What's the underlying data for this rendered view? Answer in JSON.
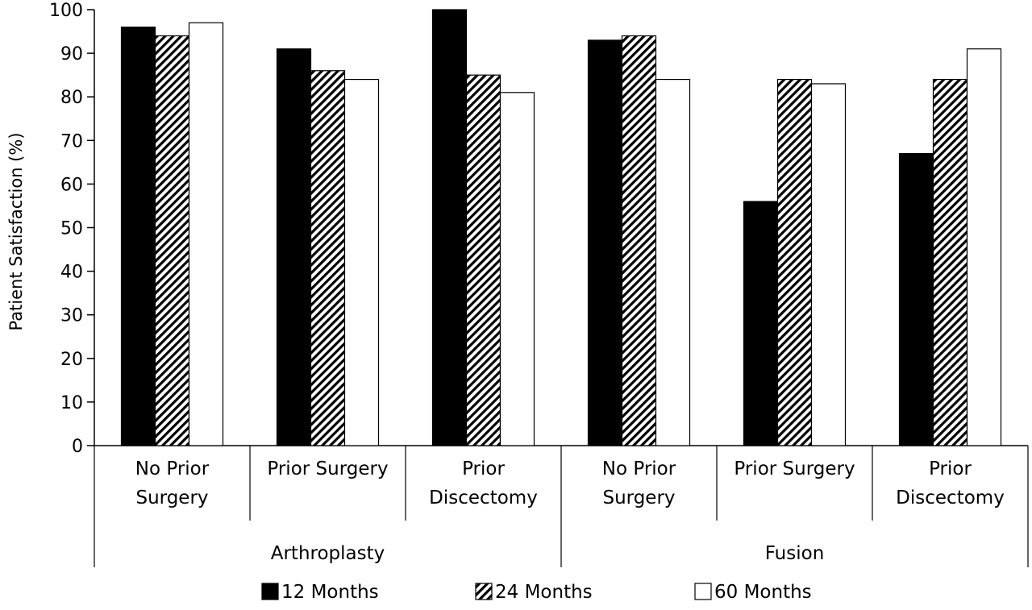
{
  "chart_data": {
    "type": "bar",
    "title": "",
    "xlabel": "",
    "ylabel": "Patient Satisfaction (%)",
    "ylim": [
      0,
      100
    ],
    "yticks": [
      0,
      10,
      20,
      30,
      40,
      50,
      60,
      70,
      80,
      90,
      100
    ],
    "grid": false,
    "legend_position": "bottom",
    "groups": [
      {
        "label": "Arthroplasty",
        "categories": 3
      },
      {
        "label": "Fusion",
        "categories": 3
      }
    ],
    "categories": [
      [
        "No Prior",
        "Surgery"
      ],
      [
        "Prior Surgery"
      ],
      [
        "Prior",
        "Discectomy"
      ],
      [
        "No Prior",
        "Surgery"
      ],
      [
        "Prior Surgery"
      ],
      [
        "Prior",
        "Discectomy"
      ]
    ],
    "series": [
      {
        "name": "12 Months",
        "style": "solid",
        "color": "#000000",
        "values": [
          96,
          91,
          100,
          93,
          56,
          67
        ]
      },
      {
        "name": "24 Months",
        "style": "hatched",
        "color": "#000000",
        "values": [
          94,
          86,
          85,
          94,
          84,
          84
        ]
      },
      {
        "name": "60 Months",
        "style": "white",
        "color": "#ffffff",
        "values": [
          97,
          84,
          81,
          84,
          83,
          91
        ]
      }
    ]
  }
}
